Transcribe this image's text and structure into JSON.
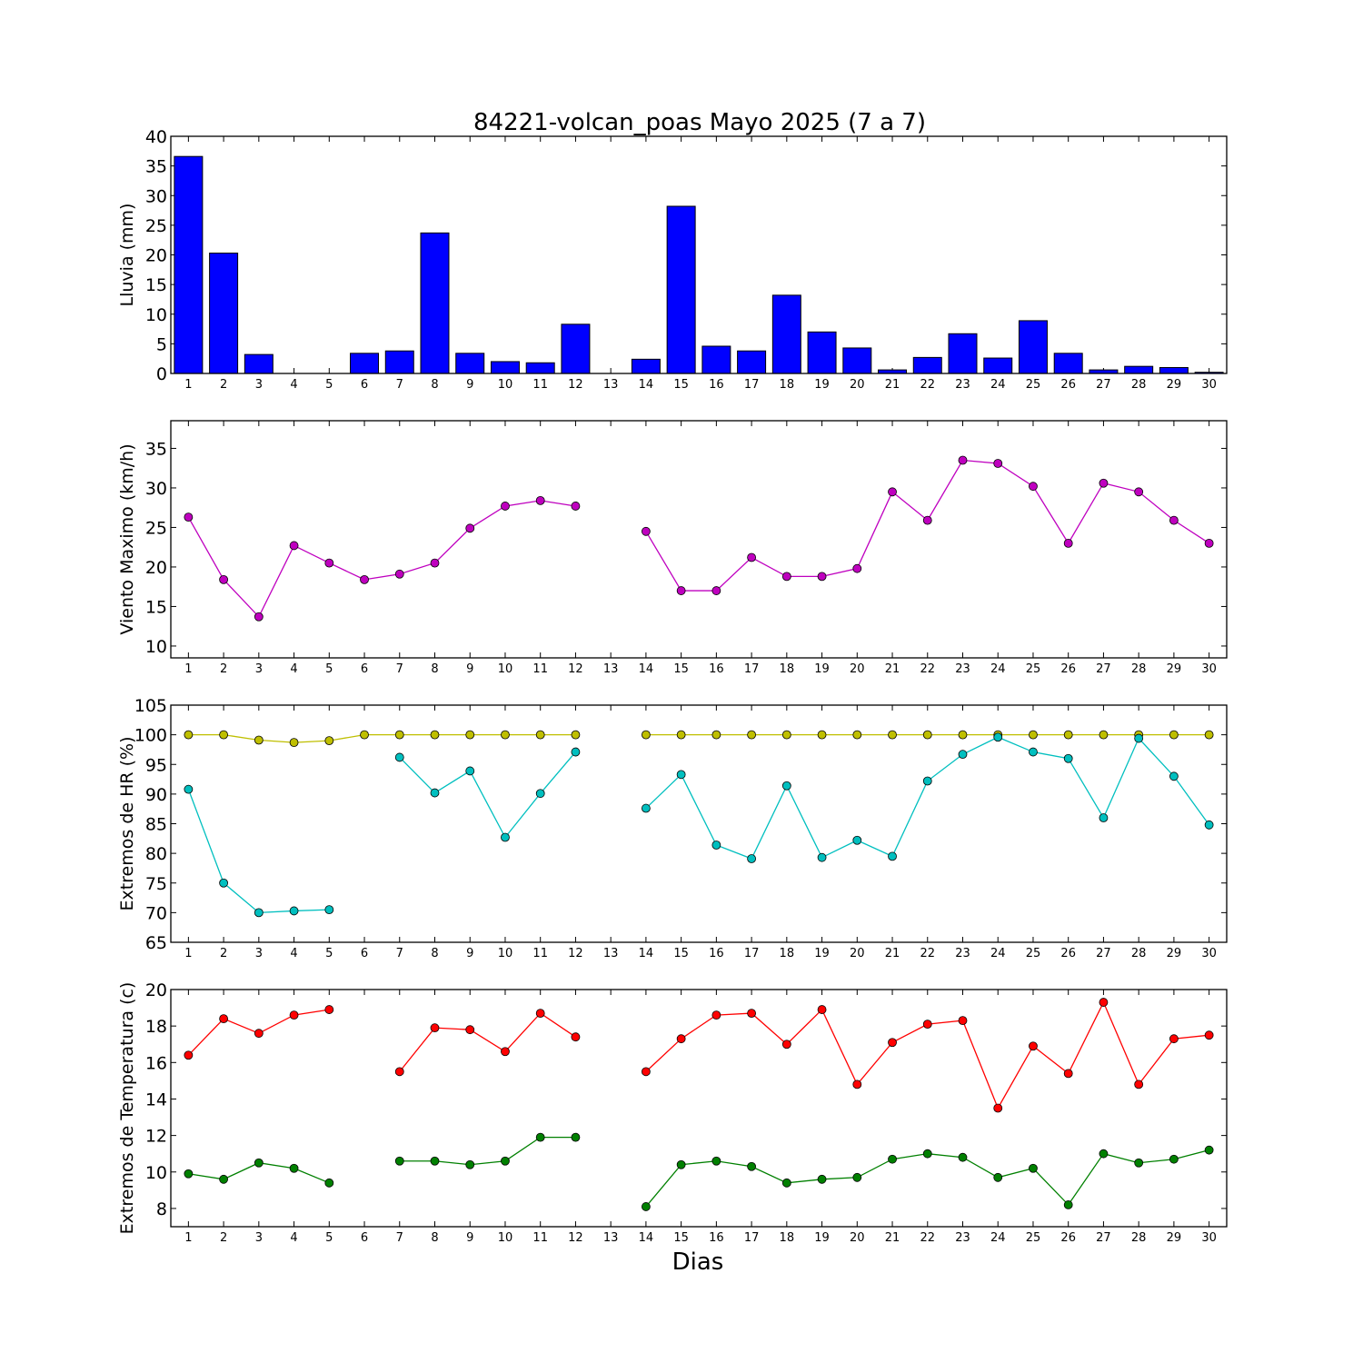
{
  "title": "84221-volcan_poas Mayo 2025  (7 a 7)",
  "xlabel": "Dias",
  "chart_data": [
    {
      "type": "bar",
      "ylabel": "Lluvia (mm)",
      "ylim": [
        0,
        40
      ],
      "yticks": [
        0,
        5,
        10,
        15,
        20,
        25,
        30,
        35,
        40
      ],
      "x": [
        1,
        2,
        3,
        4,
        5,
        6,
        7,
        8,
        9,
        10,
        11,
        12,
        13,
        14,
        15,
        16,
        17,
        18,
        19,
        20,
        21,
        22,
        23,
        24,
        25,
        26,
        27,
        28,
        29,
        30
      ],
      "series": [
        {
          "color": "#0000ff",
          "values": [
            36.6,
            20.3,
            3.2,
            0,
            0,
            3.4,
            3.8,
            23.7,
            3.4,
            2.0,
            1.8,
            8.3,
            null,
            2.4,
            28.2,
            4.6,
            3.8,
            13.2,
            7.0,
            4.3,
            0.6,
            2.7,
            6.7,
            2.6,
            8.9,
            3.4,
            0.6,
            1.2,
            1.0,
            0.2
          ]
        }
      ]
    },
    {
      "type": "line",
      "ylabel": "Viento Maximo (km/h)",
      "ylim": [
        8.5,
        38.5
      ],
      "yticks": [
        10,
        15,
        20,
        25,
        30,
        35
      ],
      "x": [
        1,
        2,
        3,
        4,
        5,
        6,
        7,
        8,
        9,
        10,
        11,
        12,
        13,
        14,
        15,
        16,
        17,
        18,
        19,
        20,
        21,
        22,
        23,
        24,
        25,
        26,
        27,
        28,
        29,
        30
      ],
      "series": [
        {
          "color": "#bf00bf",
          "values": [
            26.3,
            18.4,
            13.7,
            22.7,
            20.5,
            18.4,
            19.1,
            20.5,
            24.9,
            27.7,
            28.4,
            27.7,
            null,
            24.5,
            17.0,
            17.0,
            21.2,
            18.8,
            18.8,
            19.8,
            29.5,
            25.9,
            33.5,
            33.1,
            30.2,
            23.0,
            30.6,
            29.5,
            25.9,
            23.0
          ]
        }
      ]
    },
    {
      "type": "line",
      "ylabel": "Extremos de HR (%)",
      "ylim": [
        65,
        105
      ],
      "yticks": [
        65,
        70,
        75,
        80,
        85,
        90,
        95,
        100,
        105
      ],
      "x": [
        1,
        2,
        3,
        4,
        5,
        6,
        7,
        8,
        9,
        10,
        11,
        12,
        13,
        14,
        15,
        16,
        17,
        18,
        19,
        20,
        21,
        22,
        23,
        24,
        25,
        26,
        27,
        28,
        29,
        30
      ],
      "series": [
        {
          "color": "#bfbf00",
          "values": [
            100,
            100,
            99.1,
            98.7,
            99.0,
            100,
            100,
            100,
            100,
            100,
            100,
            100,
            null,
            100,
            100,
            100,
            100,
            100,
            100,
            100,
            100,
            100,
            100,
            100,
            100,
            100,
            100,
            100,
            100,
            100
          ]
        },
        {
          "color": "#00bfbf",
          "values": [
            90.8,
            75.0,
            70.0,
            70.3,
            70.5,
            null,
            96.2,
            90.2,
            93.9,
            82.7,
            90.1,
            97.1,
            null,
            87.6,
            93.3,
            81.4,
            79.1,
            91.4,
            79.3,
            82.2,
            79.5,
            92.2,
            96.7,
            99.6,
            97.1,
            96.0,
            86.0,
            99.4,
            93.0,
            84.8
          ]
        }
      ]
    },
    {
      "type": "line",
      "ylabel": "Extremos de Temperatura (c)",
      "ylim": [
        7,
        20
      ],
      "yticks": [
        8,
        10,
        12,
        14,
        16,
        18,
        20
      ],
      "x": [
        1,
        2,
        3,
        4,
        5,
        6,
        7,
        8,
        9,
        10,
        11,
        12,
        13,
        14,
        15,
        16,
        17,
        18,
        19,
        20,
        21,
        22,
        23,
        24,
        25,
        26,
        27,
        28,
        29,
        30
      ],
      "series": [
        {
          "color": "#ff0000",
          "values": [
            16.4,
            18.4,
            17.6,
            18.6,
            18.9,
            null,
            15.5,
            17.9,
            17.8,
            16.6,
            18.7,
            17.4,
            null,
            15.5,
            17.3,
            18.6,
            18.7,
            17.0,
            18.9,
            14.8,
            17.1,
            18.1,
            18.3,
            13.5,
            16.9,
            15.4,
            19.3,
            14.8,
            17.3,
            17.5
          ]
        },
        {
          "color": "#008000",
          "values": [
            9.9,
            9.6,
            10.5,
            10.2,
            9.4,
            null,
            10.6,
            10.6,
            10.4,
            10.6,
            11.9,
            11.9,
            null,
            8.1,
            10.4,
            10.6,
            10.3,
            9.4,
            9.6,
            9.7,
            10.7,
            11.0,
            10.8,
            9.7,
            10.2,
            8.2,
            11.0,
            10.5,
            10.7,
            11.2
          ]
        }
      ]
    }
  ]
}
